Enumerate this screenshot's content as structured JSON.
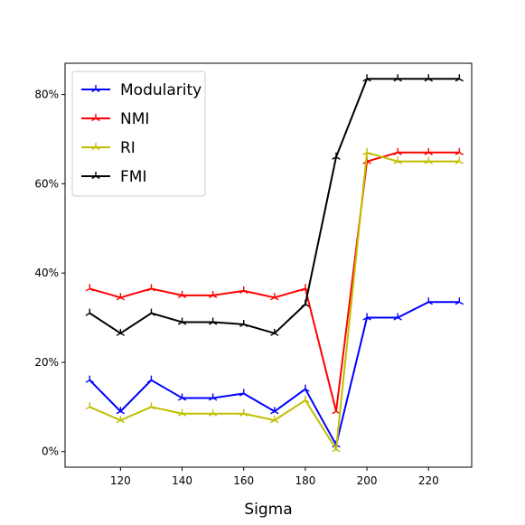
{
  "chart_data": {
    "type": "line",
    "xlabel": "Sigma",
    "ylabel": "",
    "x": [
      110,
      120,
      130,
      140,
      150,
      160,
      170,
      180,
      190,
      200,
      210,
      220,
      230
    ],
    "xlim": [
      102,
      234
    ],
    "ylim": [
      -3.5,
      87
    ],
    "xticks": [
      120,
      140,
      160,
      180,
      200,
      220
    ],
    "yticks": [
      0,
      20,
      40,
      60,
      80
    ],
    "yticklabels": [
      "0%",
      "20%",
      "40%",
      "60%",
      "80%"
    ],
    "legend_position": "top-left",
    "grid": false,
    "series": [
      {
        "name": "Modularity",
        "color": "#0000ff",
        "values": [
          16,
          9,
          16,
          12,
          12,
          13,
          9,
          14,
          1.5,
          30,
          30,
          33.5,
          33.5
        ]
      },
      {
        "name": "NMI",
        "color": "#ff0000",
        "values": [
          36.5,
          34.5,
          36.5,
          35,
          35,
          36,
          34.5,
          36.5,
          9,
          65,
          67,
          67,
          67
        ]
      },
      {
        "name": "RI",
        "color": "#bfbf00",
        "values": [
          10,
          7,
          10,
          8.5,
          8.5,
          8.5,
          7,
          11.5,
          0.5,
          67,
          65,
          65,
          65
        ]
      },
      {
        "name": "FMI",
        "color": "#000000",
        "values": [
          31,
          26.5,
          31,
          29,
          29,
          28.5,
          26.5,
          33,
          66,
          83.5,
          83.5,
          83.5,
          83.5
        ]
      }
    ]
  }
}
